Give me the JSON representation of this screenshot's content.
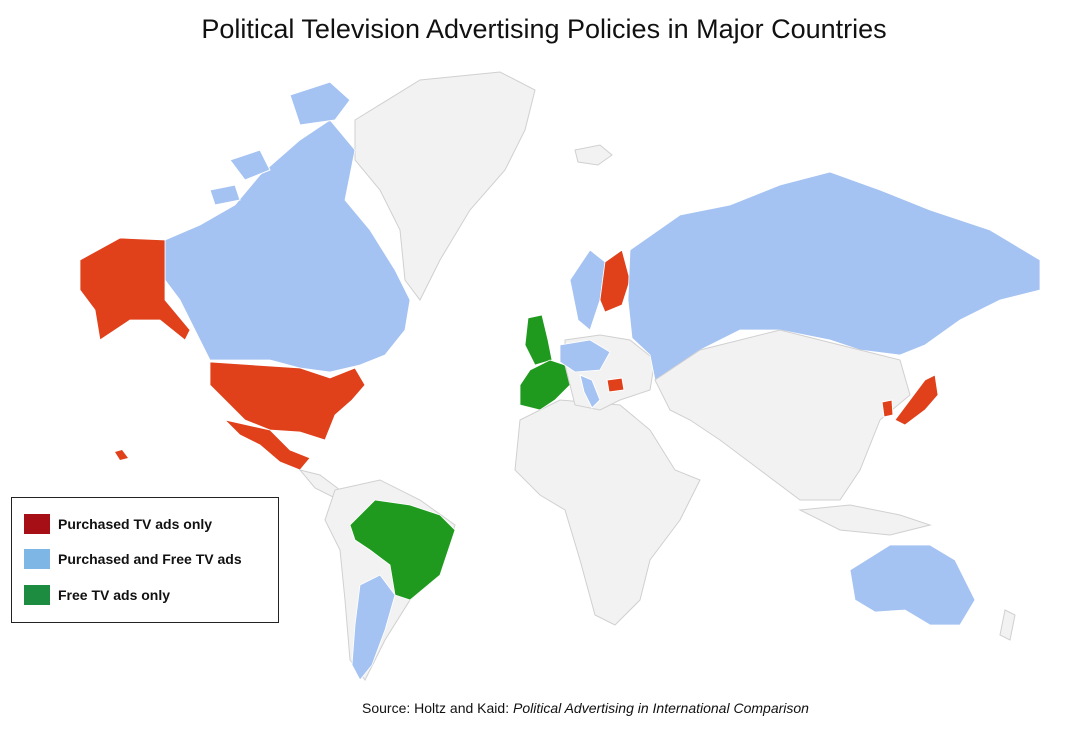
{
  "title": "Political Television Advertising Policies in Major Countries",
  "colors": {
    "purchased_only": "#e0401a",
    "purchased_and_free": "#a4c2f2",
    "free_only": "#1f9a1f",
    "no_data": "#f2f2f2",
    "border": "#cfcfcf"
  },
  "legend": {
    "items": [
      {
        "label": "Purchased TV ads only",
        "swatch": "#a50f15"
      },
      {
        "label": "Purchased and Free TV ads",
        "swatch": "#7eb6e6"
      },
      {
        "label": "Free TV ads only",
        "swatch": "#1e8c40"
      }
    ]
  },
  "source": {
    "prefix": "Source:  Holtz and Kaid: ",
    "work": "Political Advertising in International Comparison"
  }
}
